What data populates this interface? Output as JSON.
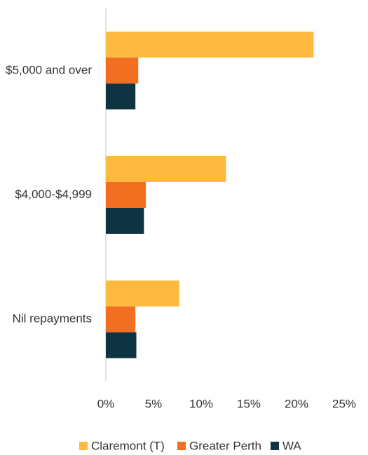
{
  "chart_data": {
    "type": "bar",
    "orientation": "horizontal",
    "categories": [
      "$5,000 and over",
      "$4,000-$4,999",
      "Nil repayments"
    ],
    "series": [
      {
        "name": "Claremont (T)",
        "color": "#FDB940",
        "values": [
          21.8,
          12.6,
          7.7
        ]
      },
      {
        "name": "Greater Perth",
        "color": "#F26F22",
        "values": [
          3.4,
          4.2,
          3.1
        ]
      },
      {
        "name": "WA",
        "color": "#0D3440",
        "values": [
          3.1,
          4.0,
          3.2
        ]
      }
    ],
    "xlim": [
      0,
      25
    ],
    "xticks": [
      {
        "value": 0,
        "label": "0%"
      },
      {
        "value": 5,
        "label": "5%"
      },
      {
        "value": 10,
        "label": "10%"
      },
      {
        "value": 15,
        "label": "15%"
      },
      {
        "value": 20,
        "label": "20%"
      },
      {
        "value": 25,
        "label": "25%"
      }
    ],
    "grid": false,
    "legend": "bottom"
  }
}
